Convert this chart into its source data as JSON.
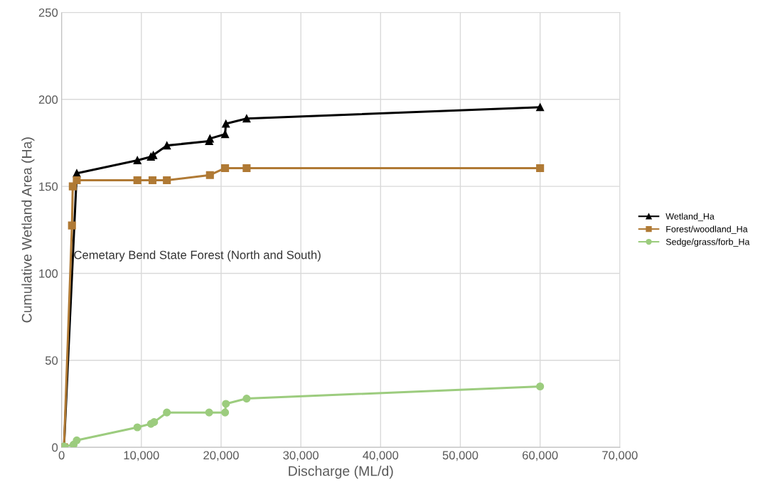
{
  "chart_data": {
    "type": "line",
    "xlabel": "Discharge (ML/d)",
    "ylabel": "Cumulative Wetland Area (Ha)",
    "xlim": [
      0,
      70000
    ],
    "xticks": [
      {
        "value": 0,
        "label": "0"
      },
      {
        "value": 10000,
        "label": "10,000"
      },
      {
        "value": 20000,
        "label": "20,000"
      },
      {
        "value": 30000,
        "label": "30,000"
      },
      {
        "value": 40000,
        "label": "40,000"
      },
      {
        "value": 50000,
        "label": "50,000"
      },
      {
        "value": 60000,
        "label": "60,000"
      },
      {
        "value": 70000,
        "label": "70,000"
      }
    ],
    "ylim": [
      0,
      250
    ],
    "yticks": [
      0,
      50,
      100,
      150,
      200,
      250
    ],
    "grid": true,
    "legend": "right",
    "annotations": [
      {
        "text": "Cemetary Bend State Forest (North and South)",
        "x": 1500,
        "y": 110
      }
    ],
    "series": [
      {
        "name": "Wetland_Ha",
        "color": "#000000",
        "marker": "triangle",
        "x": [
          300,
          1900,
          9500,
          11200,
          11500,
          13200,
          18500,
          18600,
          20500,
          20600,
          23200,
          60000
        ],
        "values": [
          0,
          157.5,
          165,
          167,
          168,
          173.5,
          176,
          177.5,
          180,
          186,
          189,
          195.5
        ]
      },
      {
        "name": "Forest/woodland_Ha",
        "color": "#b07a35",
        "marker": "square",
        "x": [
          300,
          1300,
          1400,
          1900,
          9500,
          11400,
          13200,
          18600,
          20500,
          23200,
          60000
        ],
        "values": [
          0,
          127.5,
          150,
          153.5,
          153.5,
          153.5,
          153.5,
          156.5,
          160.5,
          160.5,
          160.5
        ]
      },
      {
        "name": "Sedge/grass/forb_Ha",
        "color": "#9ccc7e",
        "marker": "circle",
        "x": [
          300,
          1500,
          1900,
          9500,
          11200,
          11600,
          13200,
          18500,
          20500,
          20600,
          23200,
          60000
        ],
        "values": [
          0.5,
          1.5,
          4,
          11.5,
          13.5,
          14.5,
          20,
          20,
          20,
          25,
          28,
          35
        ]
      }
    ]
  }
}
